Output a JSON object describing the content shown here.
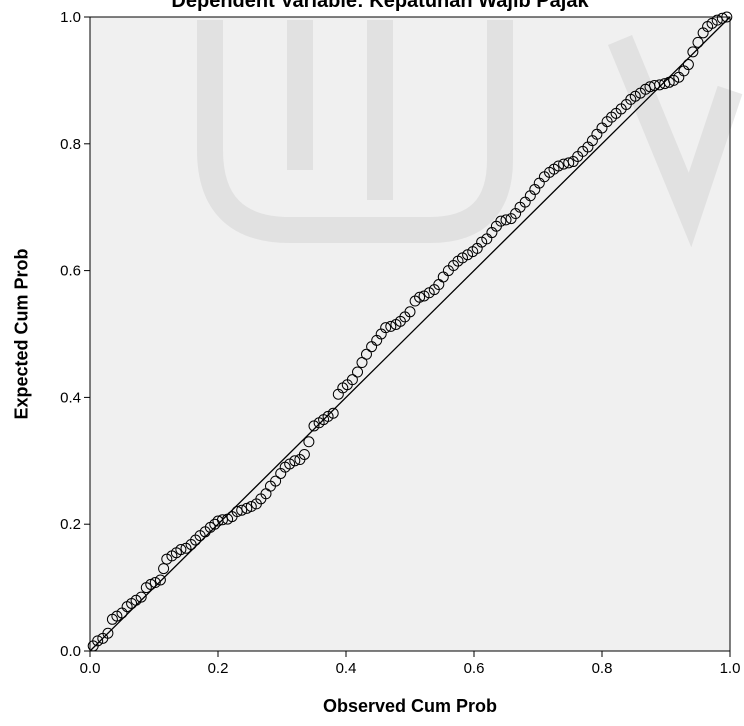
{
  "chart_data": {
    "type": "scatter",
    "title": "Dependent Variable: Kepatuhan Wajib Pajak",
    "xlabel": "Observed Cum Prob",
    "ylabel": "Expected Cum Prob",
    "xlim": [
      0.0,
      1.0
    ],
    "ylim": [
      0.0,
      1.0
    ],
    "xticks": [
      "0.0",
      "0.2",
      "0.4",
      "0.6",
      "0.8",
      "1.0"
    ],
    "yticks": [
      "0.0",
      "0.2",
      "0.4",
      "0.6",
      "0.8",
      "1.0"
    ],
    "grid": false,
    "reference_line": [
      [
        0.0,
        0.0
      ],
      [
        1.0,
        1.0
      ]
    ],
    "colors": {
      "plot_bg": "#f0f0f0",
      "marker": "#000000",
      "line": "#000000"
    },
    "points": [
      [
        0.005,
        0.008
      ],
      [
        0.012,
        0.016
      ],
      [
        0.02,
        0.02
      ],
      [
        0.028,
        0.028
      ],
      [
        0.035,
        0.05
      ],
      [
        0.042,
        0.055
      ],
      [
        0.05,
        0.06
      ],
      [
        0.058,
        0.07
      ],
      [
        0.065,
        0.075
      ],
      [
        0.072,
        0.08
      ],
      [
        0.08,
        0.085
      ],
      [
        0.088,
        0.1
      ],
      [
        0.095,
        0.105
      ],
      [
        0.102,
        0.108
      ],
      [
        0.11,
        0.112
      ],
      [
        0.115,
        0.13
      ],
      [
        0.12,
        0.145
      ],
      [
        0.128,
        0.15
      ],
      [
        0.135,
        0.155
      ],
      [
        0.142,
        0.16
      ],
      [
        0.15,
        0.162
      ],
      [
        0.158,
        0.168
      ],
      [
        0.165,
        0.175
      ],
      [
        0.172,
        0.182
      ],
      [
        0.18,
        0.188
      ],
      [
        0.188,
        0.195
      ],
      [
        0.195,
        0.2
      ],
      [
        0.2,
        0.205
      ],
      [
        0.207,
        0.207
      ],
      [
        0.215,
        0.208
      ],
      [
        0.222,
        0.212
      ],
      [
        0.23,
        0.22
      ],
      [
        0.237,
        0.222
      ],
      [
        0.245,
        0.225
      ],
      [
        0.252,
        0.228
      ],
      [
        0.26,
        0.232
      ],
      [
        0.267,
        0.24
      ],
      [
        0.275,
        0.248
      ],
      [
        0.282,
        0.26
      ],
      [
        0.29,
        0.268
      ],
      [
        0.298,
        0.28
      ],
      [
        0.305,
        0.29
      ],
      [
        0.312,
        0.295
      ],
      [
        0.32,
        0.3
      ],
      [
        0.328,
        0.302
      ],
      [
        0.335,
        0.31
      ],
      [
        0.342,
        0.33
      ],
      [
        0.35,
        0.355
      ],
      [
        0.358,
        0.36
      ],
      [
        0.365,
        0.365
      ],
      [
        0.372,
        0.37
      ],
      [
        0.38,
        0.375
      ],
      [
        0.388,
        0.405
      ],
      [
        0.395,
        0.415
      ],
      [
        0.402,
        0.42
      ],
      [
        0.41,
        0.428
      ],
      [
        0.418,
        0.44
      ],
      [
        0.425,
        0.455
      ],
      [
        0.432,
        0.468
      ],
      [
        0.44,
        0.48
      ],
      [
        0.448,
        0.49
      ],
      [
        0.455,
        0.5
      ],
      [
        0.462,
        0.51
      ],
      [
        0.47,
        0.512
      ],
      [
        0.478,
        0.515
      ],
      [
        0.485,
        0.52
      ],
      [
        0.492,
        0.527
      ],
      [
        0.5,
        0.535
      ],
      [
        0.508,
        0.552
      ],
      [
        0.515,
        0.558
      ],
      [
        0.522,
        0.56
      ],
      [
        0.53,
        0.565
      ],
      [
        0.538,
        0.57
      ],
      [
        0.545,
        0.578
      ],
      [
        0.552,
        0.59
      ],
      [
        0.56,
        0.6
      ],
      [
        0.568,
        0.608
      ],
      [
        0.575,
        0.615
      ],
      [
        0.582,
        0.62
      ],
      [
        0.59,
        0.625
      ],
      [
        0.598,
        0.63
      ],
      [
        0.605,
        0.635
      ],
      [
        0.612,
        0.645
      ],
      [
        0.62,
        0.65
      ],
      [
        0.628,
        0.66
      ],
      [
        0.635,
        0.67
      ],
      [
        0.642,
        0.678
      ],
      [
        0.65,
        0.68
      ],
      [
        0.658,
        0.682
      ],
      [
        0.665,
        0.69
      ],
      [
        0.672,
        0.7
      ],
      [
        0.68,
        0.708
      ],
      [
        0.688,
        0.718
      ],
      [
        0.695,
        0.728
      ],
      [
        0.702,
        0.738
      ],
      [
        0.71,
        0.748
      ],
      [
        0.718,
        0.755
      ],
      [
        0.725,
        0.76
      ],
      [
        0.732,
        0.765
      ],
      [
        0.74,
        0.768
      ],
      [
        0.748,
        0.77
      ],
      [
        0.755,
        0.772
      ],
      [
        0.762,
        0.78
      ],
      [
        0.77,
        0.788
      ],
      [
        0.778,
        0.795
      ],
      [
        0.785,
        0.805
      ],
      [
        0.792,
        0.815
      ],
      [
        0.8,
        0.825
      ],
      [
        0.808,
        0.835
      ],
      [
        0.815,
        0.842
      ],
      [
        0.822,
        0.848
      ],
      [
        0.83,
        0.855
      ],
      [
        0.838,
        0.862
      ],
      [
        0.845,
        0.87
      ],
      [
        0.852,
        0.875
      ],
      [
        0.86,
        0.88
      ],
      [
        0.868,
        0.886
      ],
      [
        0.875,
        0.89
      ],
      [
        0.882,
        0.892
      ],
      [
        0.89,
        0.893
      ],
      [
        0.898,
        0.895
      ],
      [
        0.905,
        0.897
      ],
      [
        0.912,
        0.9
      ],
      [
        0.92,
        0.905
      ],
      [
        0.928,
        0.915
      ],
      [
        0.935,
        0.925
      ],
      [
        0.942,
        0.945
      ],
      [
        0.95,
        0.96
      ],
      [
        0.958,
        0.975
      ],
      [
        0.965,
        0.985
      ],
      [
        0.972,
        0.99
      ],
      [
        0.98,
        0.995
      ],
      [
        0.988,
        0.998
      ],
      [
        0.995,
        1.0
      ]
    ]
  }
}
